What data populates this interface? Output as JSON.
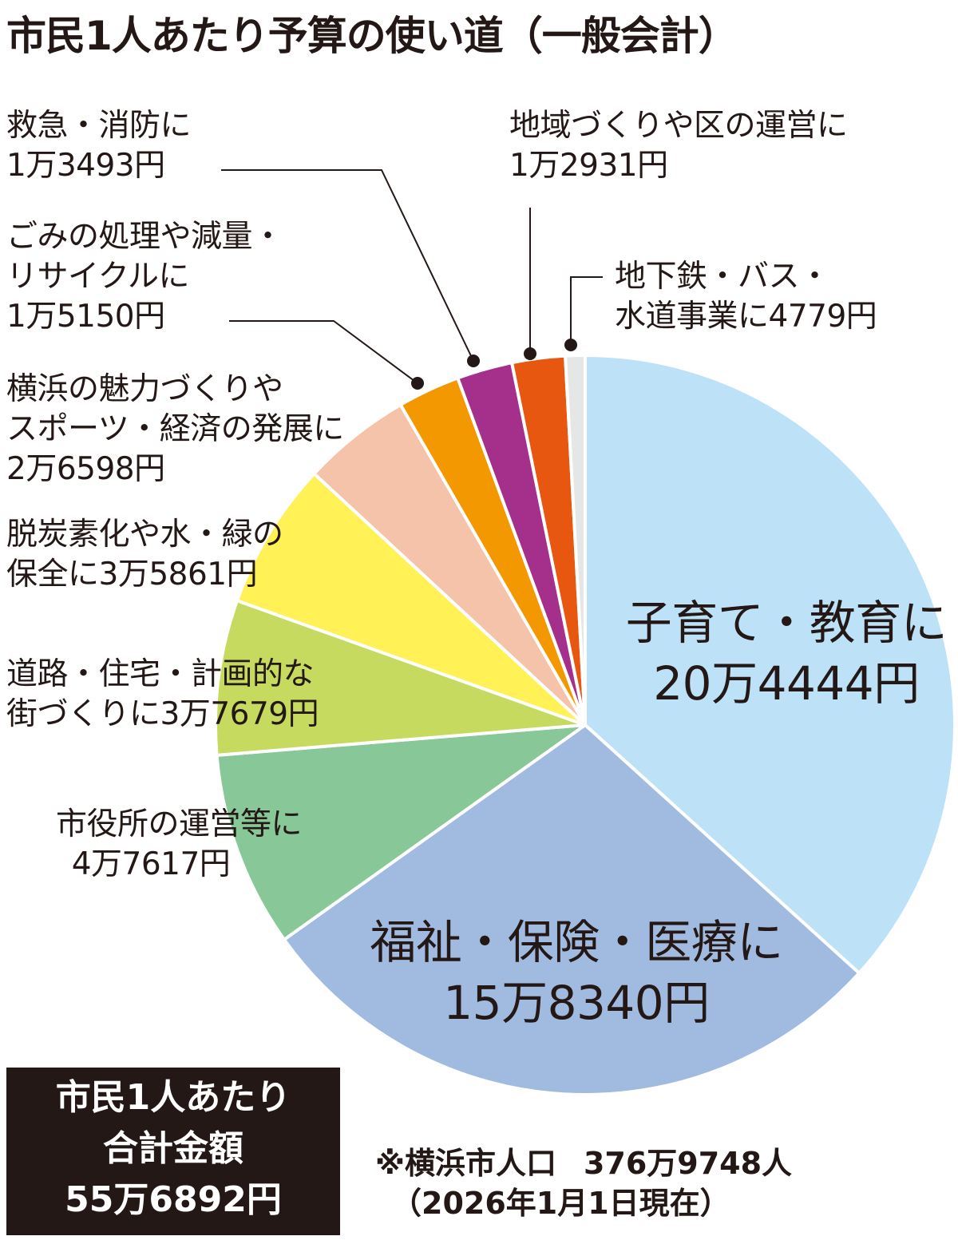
{
  "title": "市民1人あたり予算の使い道（一般会計）",
  "chart_data": {
    "type": "pie",
    "title": "市民1人あたり予算の使い道（一般会計）",
    "unit": "円",
    "start_angle": "12 o'clock, clockwise",
    "categories": [
      "子育て・教育",
      "福祉・保険・医療",
      "市役所の運営等",
      "道路・住宅・計画的な街づくり",
      "脱炭素化や水・緑の保全",
      "横浜の魅力づくりやスポーツ・経済の発展",
      "ごみの処理や減量・リサイクル",
      "救急・消防",
      "地域づくりや区の運営",
      "地下鉄・バス・水道事業"
    ],
    "values": [
      204444,
      158340,
      47617,
      37679,
      35861,
      26598,
      15150,
      13493,
      12931,
      4779
    ],
    "colors": [
      "#bde2f7",
      "#a1bbe0",
      "#88c798",
      "#c6da60",
      "#fff156",
      "#f5c3a9",
      "#f39800",
      "#a4308c",
      "#e85710",
      "#e5e7e7"
    ],
    "total": 556892
  },
  "slices": [
    {
      "lines": [
        "子育て・教育に",
        "20万4444円"
      ]
    },
    {
      "lines": [
        "福祉・保険・医療に",
        "15万8340円"
      ]
    },
    {
      "lines": [
        "市役所の運営等に",
        "4万7617円"
      ]
    },
    {
      "lines": [
        "道路・住宅・計画的な",
        "街づくりに3万7679円"
      ]
    },
    {
      "lines": [
        "脱炭素化や水・緑の",
        "保全に3万5861円"
      ]
    },
    {
      "lines": [
        "横浜の魅力づくりや",
        "スポーツ・経済の発展に",
        "2万6598円"
      ]
    },
    {
      "lines": [
        "ごみの処理や減量・",
        "リサイクルに",
        "1万5150円"
      ]
    },
    {
      "lines": [
        "救急・消防に",
        "1万3493円"
      ]
    },
    {
      "lines": [
        "地域づくりや区の運営に",
        "1万2931円"
      ]
    },
    {
      "lines": [
        "地下鉄・バス・",
        "水道事業に4779円"
      ]
    }
  ],
  "total_box": {
    "line1": "市民1人あたり",
    "line2": "合計金額",
    "line3": "55万6892円"
  },
  "note": {
    "label": "※横浜市人口",
    "population": "376万9748人",
    "date": "（2026年1月1日現在）"
  }
}
